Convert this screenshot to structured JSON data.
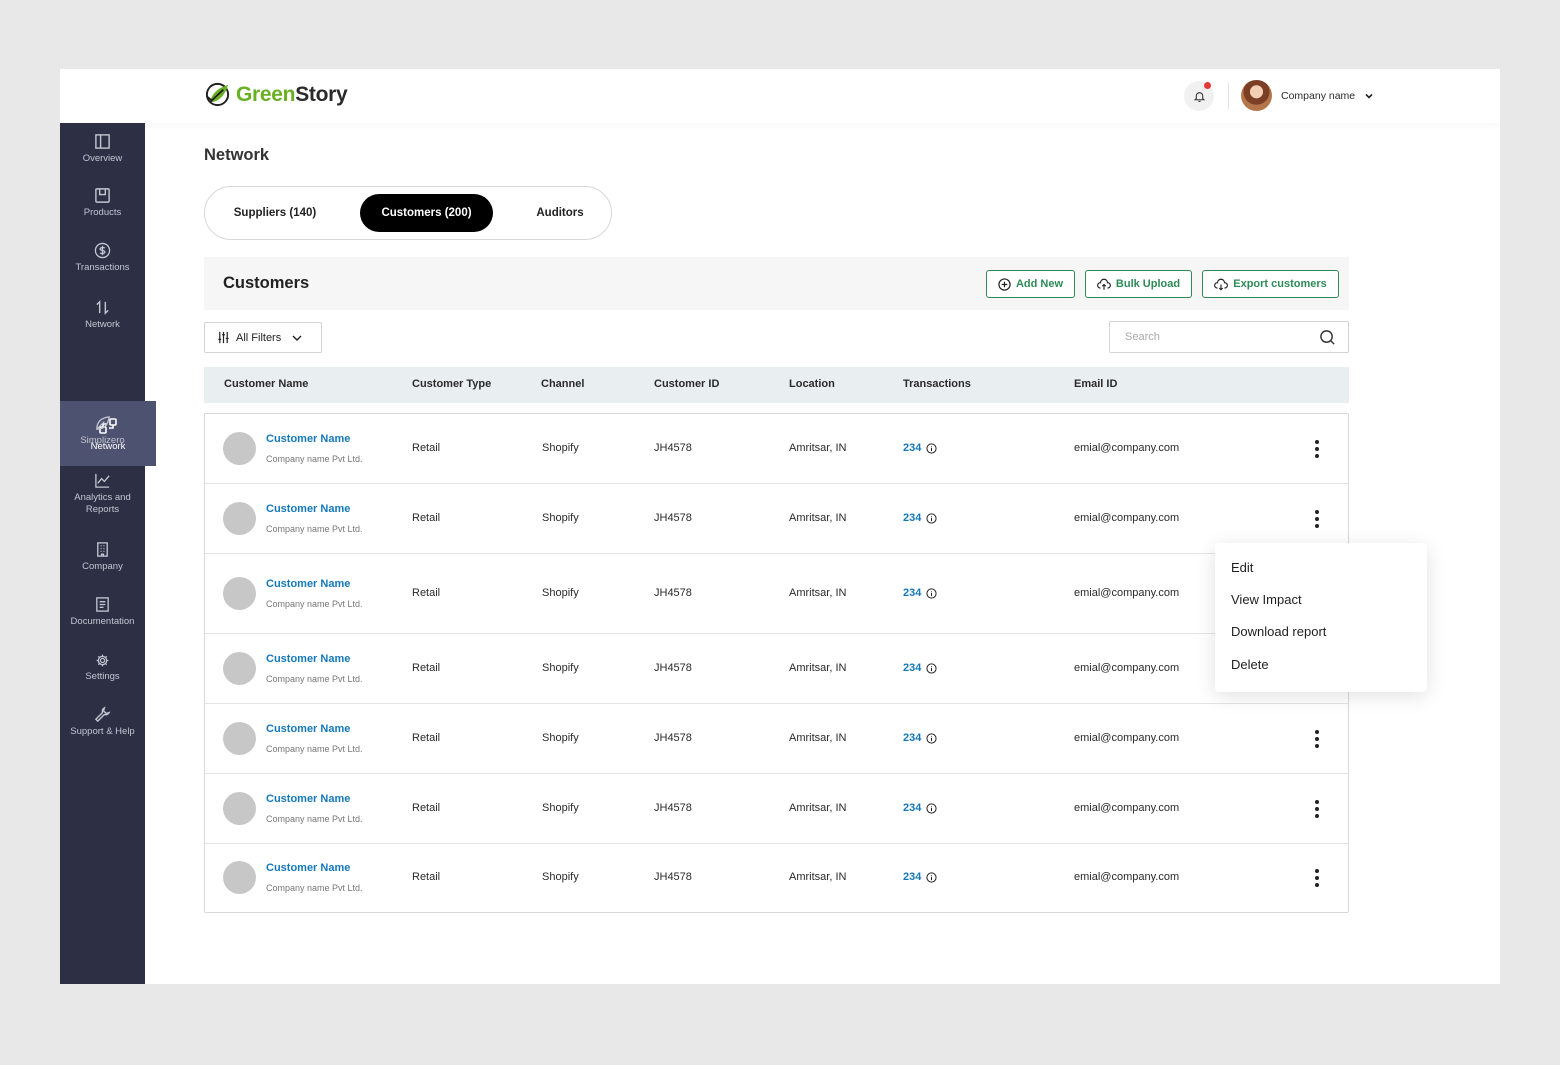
{
  "app": {
    "logo_green": "Green",
    "logo_dark": "Story"
  },
  "header": {
    "profile_name": "Company name"
  },
  "sidebar": {
    "items": [
      {
        "label": "Overview",
        "icon": "overview-icon"
      },
      {
        "label": "Products",
        "icon": "products-icon"
      },
      {
        "label": "Transactions",
        "icon": "transactions-icon"
      },
      {
        "label": "Network",
        "icon": "arrows-icon"
      },
      {
        "label": "Network",
        "icon": "network-icon",
        "active": true
      },
      {
        "label": "Simplizero",
        "icon": "leaf-icon"
      },
      {
        "label": "Analytics and Reports",
        "icon": "analytics-icon"
      },
      {
        "label": "Company",
        "icon": "building-icon"
      },
      {
        "label": "Documentation",
        "icon": "document-icon"
      },
      {
        "label": "Settings",
        "icon": "gear-icon"
      },
      {
        "label": "Support & Help",
        "icon": "wrench-icon"
      }
    ]
  },
  "page": {
    "title": "Network"
  },
  "tabs": [
    {
      "label": "Suppliers (140)"
    },
    {
      "label": "Customers (200)",
      "active": true
    },
    {
      "label": "Auditors"
    }
  ],
  "section": {
    "title": "Customers",
    "add_label": "Add New",
    "bulk_label": "Bulk Upload",
    "export_label": "Export customers"
  },
  "filters": {
    "label": "All Filters"
  },
  "search": {
    "placeholder": "Search",
    "value": ""
  },
  "table": {
    "columns": [
      "Customer Name",
      "Customer Type",
      "Channel",
      "Customer ID",
      "Location",
      "Transactions",
      "Email ID"
    ],
    "rows": [
      {
        "name": "Customer Name",
        "company": "Company name Pvt Ltd.",
        "type": "Retail",
        "channel": "Shopify",
        "id": "JH4578",
        "location": "Amritsar, IN",
        "transactions": "234",
        "email": "emial@company.com"
      },
      {
        "name": "Customer Name",
        "company": "Company name Pvt Ltd.",
        "type": "Retail",
        "channel": "Shopify",
        "id": "JH4578",
        "location": "Amritsar, IN",
        "transactions": "234",
        "email": "emial@company.com"
      },
      {
        "name": "Customer Name",
        "company": "Company name Pvt Ltd.",
        "type": "Retail",
        "channel": "Shopify",
        "id": "JH4578",
        "location": "Amritsar, IN",
        "transactions": "234",
        "email": "emial@company.com"
      },
      {
        "name": "Customer Name",
        "company": "Company name Pvt Ltd.",
        "type": "Retail",
        "channel": "Shopify",
        "id": "JH4578",
        "location": "Amritsar, IN",
        "transactions": "234",
        "email": "emial@company.com"
      },
      {
        "name": "Customer Name",
        "company": "Company name Pvt Ltd.",
        "type": "Retail",
        "channel": "Shopify",
        "id": "JH4578",
        "location": "Amritsar, IN",
        "transactions": "234",
        "email": "emial@company.com"
      },
      {
        "name": "Customer Name",
        "company": "Company name Pvt Ltd.",
        "type": "Retail",
        "channel": "Shopify",
        "id": "JH4578",
        "location": "Amritsar, IN",
        "transactions": "234",
        "email": "emial@company.com"
      },
      {
        "name": "Customer Name",
        "company": "Company name Pvt Ltd.",
        "type": "Retail",
        "channel": "Shopify",
        "id": "JH4578",
        "location": "Amritsar, IN",
        "transactions": "234",
        "email": "emial@company.com"
      }
    ]
  },
  "row_menu": {
    "items": [
      "Edit",
      "View Impact",
      "Download report",
      "Delete"
    ]
  },
  "colors": {
    "sidebar_bg": "#2d3045",
    "sidebar_active": "#4d5270",
    "accent_green": "#2e8b57",
    "link_blue": "#1579b8",
    "logo_green": "#6ab023",
    "notification_dot": "#e53935"
  }
}
